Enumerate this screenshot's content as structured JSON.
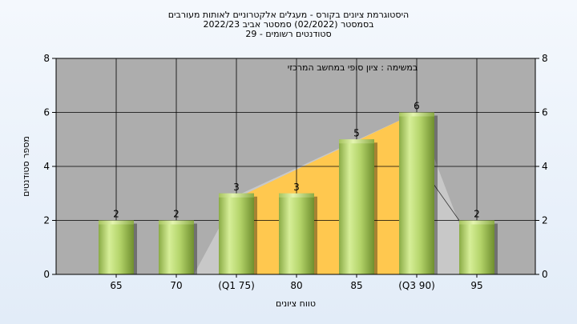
{
  "chart_data": {
    "type": "bar",
    "title_lines": [
      "היסטוגרמת ציונים בקורס - מעגלים אלקטרוניים לאותות מעורבים",
      "בסמסטר (02/2022) סמסטר אביב 2022/23",
      "סטודנטים רשומים - 29"
    ],
    "annotation": "במשימה : ציון סופי במחשב המרכזי",
    "xlabel": "טווח ציונים",
    "ylabel": "מספר סטודנטים",
    "categories": [
      "65",
      "70",
      "(Q1 75)",
      "80",
      "85",
      "(Q3 90)",
      "95"
    ],
    "values": [
      2,
      2,
      3,
      3,
      5,
      6,
      2
    ],
    "value_labels": [
      "2",
      "2",
      "3",
      "3",
      "5",
      "6",
      "2"
    ],
    "ylim": [
      0,
      8
    ],
    "yticks": [
      "0",
      "2",
      "4",
      "6",
      "8"
    ],
    "grid": true,
    "interquartile_band": {
      "from_category": "(Q1 75)",
      "to_category": "(Q3 90)"
    },
    "colors": {
      "plot_bg": "#adadad",
      "bar_light": "#d4ec95",
      "bar_dark": "#7e9e3a",
      "band": "#ffc84f",
      "shadow_area": "#c8c8c8"
    }
  }
}
